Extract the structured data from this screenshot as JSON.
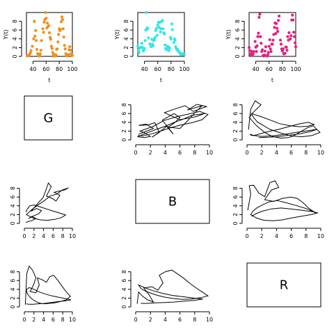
{
  "chart_data": [
    {
      "type": "scatter",
      "xlabel": "t",
      "ylabel": "Y(t)",
      "xlim": [
        30,
        100
      ],
      "ylim": [
        0,
        10
      ],
      "xticks": [
        40,
        60,
        80,
        100
      ],
      "yticks": [
        0,
        2,
        4,
        6,
        8
      ],
      "color": "#f28e1c",
      "x": [
        31,
        33,
        35,
        36,
        37,
        39,
        41,
        42,
        43,
        44,
        45,
        46,
        47,
        49,
        50,
        51,
        52,
        53,
        55,
        56,
        57,
        58,
        59,
        60,
        61,
        62,
        63,
        64,
        65,
        66,
        67,
        68,
        69,
        70,
        71,
        72,
        73,
        74,
        75,
        76,
        77,
        78,
        79,
        80,
        81,
        82,
        83,
        84,
        85,
        86,
        87,
        88,
        89,
        90,
        91,
        92,
        93,
        94,
        95,
        96,
        97,
        98,
        99,
        100
      ],
      "y": [
        0.1,
        0.2,
        0.5,
        0.8,
        1.3,
        2.3,
        4.0,
        8.0,
        4.6,
        5.9,
        3.6,
        1.6,
        0.6,
        0.1,
        0.2,
        0.6,
        1.4,
        3.6,
        6.3,
        5.5,
        7.8,
        8.4,
        10.0,
        8.7,
        6.5,
        7.6,
        6.8,
        7.0,
        5.4,
        4.3,
        3.9,
        2.3,
        1.8,
        0.9,
        0.4,
        0.1,
        0.4,
        0.1,
        0.3,
        1.6,
        1.7,
        3.3,
        5.0,
        6.3,
        5.9,
        6.1,
        7.9,
        9.0,
        8.4,
        6.3,
        4.4,
        2.5,
        1.7,
        0.6,
        0.2,
        0.1,
        0.2,
        0.4,
        1.5,
        2.2,
        1.4,
        0.6,
        0.3,
        0.2
      ]
    },
    {
      "type": "scatter",
      "xlabel": "t",
      "ylabel": "Y(t)",
      "xlim": [
        30,
        100
      ],
      "ylim": [
        0,
        10
      ],
      "xticks": [
        40,
        60,
        80,
        100
      ],
      "yticks": [
        0,
        2,
        4,
        6,
        8
      ],
      "color": "#33e6e6",
      "x": [
        30,
        31,
        32,
        33,
        35,
        36,
        37,
        38,
        39,
        40,
        41,
        42,
        43,
        44,
        45,
        46,
        48,
        50,
        51,
        52,
        53,
        54,
        55,
        56,
        57,
        58,
        59,
        60,
        61,
        62,
        63,
        64,
        65,
        66,
        67,
        68,
        69,
        70,
        71,
        72,
        73,
        74,
        75,
        76,
        77,
        78,
        79,
        80,
        81,
        82,
        84,
        85,
        86,
        87,
        88,
        89,
        90,
        91,
        92,
        93,
        94,
        95,
        97,
        98,
        99,
        100
      ],
      "y": [
        2.3,
        1.4,
        0.8,
        1.9,
        2.1,
        3.0,
        2.0,
        1.3,
        1.3,
        1.8,
        3.6,
        6.0,
        10.0,
        6.5,
        6.3,
        4.2,
        2.8,
        2.2,
        3.9,
        2.8,
        2.4,
        3.6,
        4.0,
        4.3,
        5.9,
        6.4,
        4.8,
        7.1,
        7.8,
        6.6,
        7.7,
        5.6,
        6.3,
        8.0,
        8.2,
        6.3,
        5.4,
        5.1,
        2.6,
        1.8,
        1.6,
        1.5,
        2.3,
        2.1,
        1.3,
        1.9,
        4.3,
        3.9,
        7.4,
        6.1,
        3.2,
        4.0,
        3.7,
        2.2,
        1.7,
        1.5,
        1.6,
        1.1,
        1.1,
        0.9,
        0.5,
        0.6,
        0.4,
        0.6,
        0.5,
        0.4
      ]
    },
    {
      "type": "scatter",
      "xlabel": "t",
      "ylabel": "Y(t)",
      "xlim": [
        30,
        100
      ],
      "ylim": [
        0,
        10
      ],
      "xticks": [
        40,
        60,
        80,
        100
      ],
      "yticks": [
        0,
        2,
        4,
        6,
        8
      ],
      "color": "#e61e80",
      "x": [
        30,
        31,
        32,
        33,
        34,
        35,
        36,
        37,
        39,
        40,
        41,
        42,
        43,
        44,
        45,
        46,
        47,
        48,
        49,
        50,
        51,
        52,
        53,
        54,
        55,
        57,
        58,
        59,
        60,
        61,
        62,
        63,
        64,
        65,
        66,
        67,
        68,
        69,
        70,
        71,
        72,
        73,
        74,
        75,
        77,
        78,
        79,
        80,
        81,
        82,
        83,
        84,
        85,
        86,
        87,
        88,
        89,
        90,
        92,
        93,
        94,
        95,
        96,
        97,
        98,
        99,
        100
      ],
      "y": [
        2.0,
        1.3,
        0.5,
        1.2,
        0.3,
        0.8,
        0.5,
        1.1,
        3.4,
        2.1,
        1.1,
        2.4,
        4.5,
        5.3,
        8.9,
        9.6,
        4.5,
        3.0,
        1.1,
        1.5,
        0.2,
        0.1,
        0.3,
        1.2,
        2.2,
        0.1,
        0.4,
        0.9,
        2.3,
        3.8,
        1.7,
        1.1,
        2.8,
        2.8,
        3.7,
        5.0,
        6.6,
        7.6,
        5.2,
        7.5,
        6.4,
        5.7,
        8.2,
        9.2,
        3.7,
        2.8,
        1.7,
        1.2,
        1.7,
        0.6,
        0.6,
        0.7,
        2.1,
        2.1,
        1.4,
        4.5,
        3.7,
        5.4,
        4.0,
        4.7,
        8.3,
        9.4,
        8.3,
        5.5,
        4.5,
        3.1,
        2.2
      ]
    },
    {
      "type": "label",
      "text": "G"
    },
    {
      "type": "line",
      "xlim": [
        0,
        10
      ],
      "ylim": [
        0,
        10
      ],
      "xticks": [
        0,
        2,
        4,
        6,
        8,
        10
      ],
      "yticks": [
        0,
        2,
        4,
        6,
        8
      ],
      "x": [
        0.4,
        0.9,
        2.4,
        1.4,
        0.4,
        1.6,
        2.6,
        3.2,
        2.2,
        3.4,
        4.2,
        5.1,
        3.6,
        5.2,
        6.0,
        5.2,
        4.4,
        6.0,
        7.0,
        8.1,
        9.0,
        7.0,
        8.3,
        9.6,
        7.8,
        6.7,
        5.4,
        3.9,
        6.0,
        8.2,
        9.3,
        7.6,
        6.4,
        5.1,
        4.0,
        2.8,
        1.7,
        0.8,
        0.3,
        1.2,
        2.0,
        1.1,
        0.6,
        2.4,
        3.8,
        5.6,
        7.2,
        8.7,
        9.8,
        9.0,
        7.6,
        6.1,
        4.6,
        3.4,
        2.2,
        1.0,
        0.3
      ],
      "y": [
        1.3,
        1.6,
        2.6,
        3.6,
        3.3,
        3.4,
        3.9,
        1.7,
        0.6,
        2.0,
        3.1,
        1.3,
        4.5,
        6.0,
        5.1,
        3.8,
        2.9,
        2.6,
        4.3,
        6.3,
        7.8,
        6.8,
        8.1,
        7.6,
        6.5,
        7.8,
        7.1,
        6.2,
        4.6,
        5.3,
        6.0,
        5.6,
        4.7,
        3.9,
        3.1,
        2.4,
        1.7,
        1.1,
        0.7,
        0.5,
        0.8,
        1.7,
        2.0,
        3.1,
        4.4,
        5.3,
        5.9,
        6.5,
        5.8,
        4.6,
        3.9,
        3.4,
        2.7,
        2.0,
        1.4,
        0.9,
        1.0
      ]
    },
    {
      "type": "line",
      "xlim": [
        0,
        10
      ],
      "ylim": [
        0,
        10
      ],
      "xticks": [
        0,
        2,
        4,
        6,
        8,
        10
      ],
      "yticks": [
        0,
        2,
        4,
        6,
        8
      ],
      "x": [
        0.2,
        0.5,
        1.1,
        1.9,
        0.8,
        0.3,
        1.3,
        2.4,
        3.4,
        4.6,
        5.6,
        6.3,
        7.2,
        8.2,
        9.0,
        9.4,
        9.9,
        8.8,
        7.4,
        6.0,
        4.5,
        3.1,
        2.2,
        1.4,
        0.9,
        0.6,
        1.9,
        3.2,
        4.4,
        5.9,
        7.1,
        8.2,
        9.1,
        8.3,
        7.0,
        5.6,
        4.3,
        2.9,
        2.0,
        1.2,
        0.6,
        0.4,
        0.9,
        2.0,
        3.4,
        4.8,
        6.3,
        7.9,
        9.5,
        8.6,
        7.2,
        5.8,
        4.4,
        3.0,
        1.6
      ],
      "y": [
        2.3,
        7.0,
        8.9,
        8.0,
        6.2,
        5.1,
        3.2,
        1.7,
        0.8,
        0.4,
        0.5,
        0.9,
        1.8,
        2.8,
        3.2,
        2.5,
        1.7,
        1.0,
        0.7,
        0.9,
        1.6,
        2.4,
        3.3,
        4.1,
        5.1,
        6.0,
        5.3,
        4.5,
        3.7,
        3.2,
        3.0,
        3.1,
        3.5,
        4.0,
        3.6,
        3.0,
        2.4,
        1.9,
        1.5,
        1.1,
        1.0,
        1.3,
        1.0,
        0.8,
        0.9,
        1.2,
        1.6,
        2.0,
        2.4,
        1.9,
        1.4,
        1.1,
        0.8,
        0.6,
        0.5
      ]
    },
    {
      "type": "line",
      "xlim": [
        0,
        10
      ],
      "ylim": [
        0,
        10
      ],
      "xticks": [
        0,
        2,
        4,
        6,
        8,
        10
      ],
      "yticks": [
        0,
        2,
        4,
        6,
        8
      ],
      "x": [
        0.3,
        0.8,
        1.5,
        2.4,
        1.6,
        0.9,
        1.9,
        3.0,
        3.6,
        2.5,
        1.4,
        2.6,
        3.9,
        4.4,
        5.0,
        5.6,
        4.6,
        5.8,
        6.6,
        7.4,
        6.2,
        8.3,
        9.2,
        7.9,
        6.8,
        5.3,
        4.2,
        3.1,
        2.2,
        1.4,
        0.8,
        0.4,
        1.3,
        2.1,
        3.4,
        4.8,
        6.3,
        7.7,
        8.6,
        7.5,
        6.0,
        4.6,
        3.2,
        2.0,
        1.1,
        0.6,
        0.3
      ],
      "y": [
        0.2,
        0.4,
        0.6,
        1.1,
        1.6,
        1.1,
        1.7,
        2.2,
        2.9,
        3.4,
        2.8,
        4.3,
        5.9,
        7.3,
        9.2,
        8.4,
        6.2,
        5.7,
        5.1,
        6.4,
        7.1,
        7.6,
        8.1,
        7.6,
        6.7,
        6.2,
        5.2,
        4.4,
        3.7,
        3.0,
        2.4,
        2.0,
        1.5,
        1.1,
        0.8,
        0.7,
        0.9,
        1.3,
        1.9,
        2.3,
        2.8,
        3.3,
        3.8,
        4.2,
        4.0,
        3.2,
        2.6
      ]
    },
    {
      "type": "label",
      "text": "B"
    },
    {
      "type": "line",
      "xlim": [
        0,
        10
      ],
      "ylim": [
        0,
        10
      ],
      "xticks": [
        0,
        2,
        4,
        6,
        8,
        10
      ],
      "yticks": [
        0,
        2,
        4,
        6,
        8
      ],
      "x": [
        0.1,
        0.5,
        0.3,
        0.9,
        1.6,
        2.4,
        3.1,
        3.8,
        4.3,
        3.3,
        2.4,
        3.6,
        4.8,
        5.9,
        6.8,
        7.6,
        8.4,
        9.3,
        8.0,
        6.6,
        5.3,
        4.1,
        3.0,
        2.2,
        1.4,
        0.8,
        0.5,
        1.3,
        2.3,
        3.5,
        4.8,
        6.0,
        7.3,
        8.7,
        9.6,
        8.8,
        7.4,
        5.9,
        4.6,
        3.3,
        2.1,
        1.2,
        0.6
      ],
      "y": [
        3.0,
        6.7,
        8.6,
        8.7,
        6.9,
        6.1,
        9.3,
        9.7,
        8.2,
        7.6,
        5.4,
        5.0,
        5.7,
        6.0,
        5.7,
        4.7,
        3.4,
        2.4,
        3.4,
        4.1,
        4.7,
        5.2,
        4.9,
        4.3,
        3.6,
        2.8,
        2.0,
        1.2,
        0.7,
        0.6,
        0.8,
        1.2,
        1.6,
        2.0,
        2.4,
        2.7,
        3.0,
        3.3,
        3.5,
        3.3,
        2.8,
        2.2,
        1.6
      ]
    },
    {
      "type": "line",
      "xlim": [
        0,
        10
      ],
      "ylim": [
        0,
        10
      ],
      "xticks": [
        0,
        2,
        4,
        6,
        8,
        10
      ],
      "yticks": [
        0,
        2,
        4,
        6,
        8
      ],
      "x": [
        0.2,
        0.5,
        1.0,
        1.7,
        2.4,
        1.9,
        1.2,
        2.4,
        3.1,
        2.7,
        3.7,
        4.6,
        5.3,
        6.1,
        7.0,
        7.8,
        8.6,
        9.6,
        8.7,
        7.5,
        6.3,
        5.1,
        4.2,
        3.4,
        2.6,
        1.8,
        1.1,
        0.6,
        0.4,
        1.0,
        2.0,
        3.1,
        4.4,
        5.8,
        7.1,
        8.5,
        9.7,
        8.6,
        7.1,
        5.6,
        4.2,
        2.9,
        1.8,
        0.9,
        0.4
      ],
      "y": [
        0.5,
        7.6,
        9.3,
        8.4,
        6.6,
        5.0,
        3.5,
        3.2,
        5.0,
        6.6,
        6.2,
        5.6,
        6.9,
        7.2,
        6.0,
        4.8,
        3.6,
        2.4,
        1.6,
        1.2,
        0.9,
        0.8,
        0.7,
        0.8,
        1.1,
        1.6,
        2.3,
        3.1,
        3.9,
        4.4,
        4.0,
        3.4,
        2.9,
        2.5,
        2.2,
        1.9,
        1.6,
        1.4,
        1.2,
        1.0,
        0.8,
        0.7,
        0.6,
        0.6,
        0.7
      ]
    },
    {
      "type": "line",
      "xlim": [
        0,
        10
      ],
      "ylim": [
        0,
        10
      ],
      "xticks": [
        0,
        2,
        4,
        6,
        8,
        10
      ],
      "yticks": [
        0,
        2,
        4,
        6,
        8
      ],
      "x": [
        0.2,
        0.4,
        0.9,
        1.6,
        2.4,
        1.8,
        1.1,
        2.2,
        3.0,
        3.7,
        3.2,
        4.0,
        4.9,
        5.7,
        6.6,
        7.4,
        8.2,
        9.2,
        9.8,
        8.8,
        7.5,
        6.3,
        5.1,
        4.0,
        3.0,
        2.1,
        1.3,
        0.7,
        0.4,
        1.2,
        2.3,
        3.6,
        5.0,
        6.5,
        7.9,
        9.1,
        8.0,
        6.6,
        5.2,
        3.9,
        2.6,
        1.5,
        0.7
      ],
      "y": [
        0.7,
        3.4,
        2.5,
        1.6,
        1.1,
        2.8,
        4.3,
        4.6,
        3.8,
        5.5,
        7.2,
        8.0,
        8.4,
        7.5,
        6.4,
        5.3,
        4.3,
        3.2,
        2.5,
        2.1,
        1.8,
        1.7,
        1.9,
        2.2,
        2.6,
        3.1,
        3.6,
        4.2,
        5.0,
        4.4,
        3.7,
        3.1,
        2.6,
        2.3,
        2.0,
        1.8,
        1.5,
        1.3,
        1.1,
        1.0,
        0.9,
        0.8,
        0.8
      ]
    },
    {
      "type": "label",
      "text": "R"
    }
  ]
}
